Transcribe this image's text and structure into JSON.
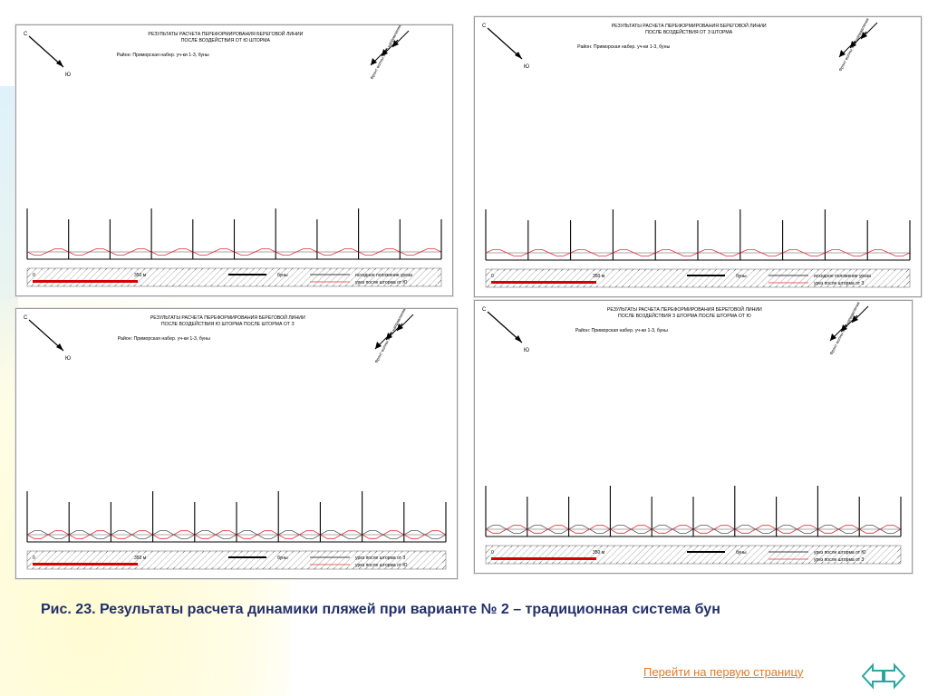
{
  "panels": [
    {
      "id": "p1",
      "title1": "РЕЗУЛЬТАТЫ РАСЧЕТА ПЕРЕФОРМИРОВАНИЯ БЕРЕГОВОЙ ЛИНИИ",
      "title2": "ПОСЛЕ ВОЗДЕЙСТВИЯ ОТ Ю ШТОРМА",
      "region": "Район: Приморская набер. уч-ки 1-3, буны",
      "wave_label": "Фронт волны от Ю направления",
      "scale_start": "0",
      "scale_end": "350 м",
      "groins_label": "буны",
      "legend_black": "исходное положение уреза",
      "legend_red": "урез после шторма от Ю",
      "north": "С",
      "south": "Ю"
    },
    {
      "id": "p2",
      "title1": "РЕЗУЛЬТАТЫ РАСЧЕТА ПЕРЕФОРМИРОВАНИЯ БЕРЕГОВОЙ ЛИНИИ",
      "title2": "ПОСЛЕ ВОЗДЕЙСТВИЯ ОТ З ШТОРМА",
      "region": "Район: Приморская набер. уч-ки 1-3, буны",
      "wave_label": "Фронт волны от З направления",
      "scale_start": "0",
      "scale_end": "350 м",
      "groins_label": "буны",
      "legend_black": "исходное положение уреза",
      "legend_red": "урез после шторма от З",
      "north": "С",
      "south": "Ю"
    },
    {
      "id": "p3",
      "title1": "РЕЗУЛЬТАТЫ РАСЧЕТА ПЕРЕФОРМИРОВАНИЯ БЕРЕГОВОЙ ЛИНИИ",
      "title2": "ПОСЛЕ ВОЗДЕЙСТВИЯ Ю ШТОРМА ПОСЛЕ ШТОРМА ОТ З",
      "region": "Район: Приморская набер. уч-ки 1-3, буны",
      "wave_label": "Фронт волны от Ю направления",
      "scale_start": "0",
      "scale_end": "350 м",
      "groins_label": "буны",
      "legend_black": "урез после шторма от З",
      "legend_red": "урез после шторма от Ю",
      "north": "С",
      "south": "Ю"
    },
    {
      "id": "p4",
      "title1": "РЕЗУЛЬТАТЫ РАСЧЕТА ПЕРЕФОРМИРОВАНИЯ БЕРЕГОВОЙ ЛИНИИ",
      "title2": "ПОСЛЕ ВОЗДЕЙСТВИЯ З ШТОРМА ПОСЛЕ ШТОРМА ОТ Ю",
      "region": "Район: Приморская набер. уч-ки 1-3, буны",
      "wave_label": "Фронт волны от З направления",
      "scale_start": "0",
      "scale_end": "350 м",
      "groins_label": "буны",
      "legend_black": "урез после шторма от Ю",
      "legend_red": "урез после шторма от З",
      "north": "С",
      "south": "Ю"
    }
  ],
  "caption": "Рис. 23. Результаты расчета динамики пляжей при  варианте № 2 – традиционная система бун",
  "nav_link": "Перейти на первую страницу",
  "colors": {
    "caption": "#22306b",
    "link": "#e07b2a",
    "nav_arrows": "#2aa6a0",
    "red_line": "#e0303a",
    "scale_red": "#d40000"
  }
}
